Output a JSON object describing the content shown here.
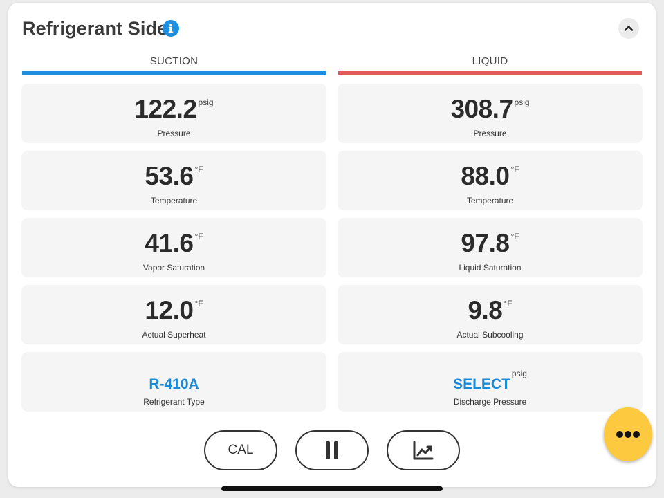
{
  "header": {
    "title": "Refrigerant Side"
  },
  "colors": {
    "suction": "#1e8fe0",
    "liquid": "#e35a5a",
    "fab": "#fcc93f",
    "link": "#1a8ad8"
  },
  "suction": {
    "heading": "SUCTION",
    "tiles": [
      {
        "value": "122.2",
        "unit": "psig",
        "label": "Pressure"
      },
      {
        "value": "53.6",
        "unit": "°F",
        "label": "Temperature"
      },
      {
        "value": "41.6",
        "unit": "°F",
        "label": "Vapor Saturation"
      },
      {
        "value": "12.0",
        "unit": "°F",
        "label": "Actual Superheat"
      },
      {
        "value": "R-410A",
        "unit": "",
        "label": "Refrigerant Type"
      }
    ]
  },
  "liquid": {
    "heading": "LIQUID",
    "tiles": [
      {
        "value": "308.7",
        "unit": "psig",
        "label": "Pressure"
      },
      {
        "value": "88.0",
        "unit": "°F",
        "label": "Temperature"
      },
      {
        "value": "97.8",
        "unit": "°F",
        "label": "Liquid Saturation"
      },
      {
        "value": "9.8",
        "unit": "°F",
        "label": "Actual Subcooling"
      },
      {
        "value": "SELECT",
        "unit": "psig",
        "label": "Discharge Pressure"
      }
    ]
  },
  "toolbar": {
    "cal_label": "CAL",
    "pause_icon": "pause-icon",
    "graph_icon": "chart-line-icon"
  },
  "icons": {
    "info": "info-icon",
    "collapse": "chevron-up-icon",
    "more": "more-dots-icon"
  }
}
